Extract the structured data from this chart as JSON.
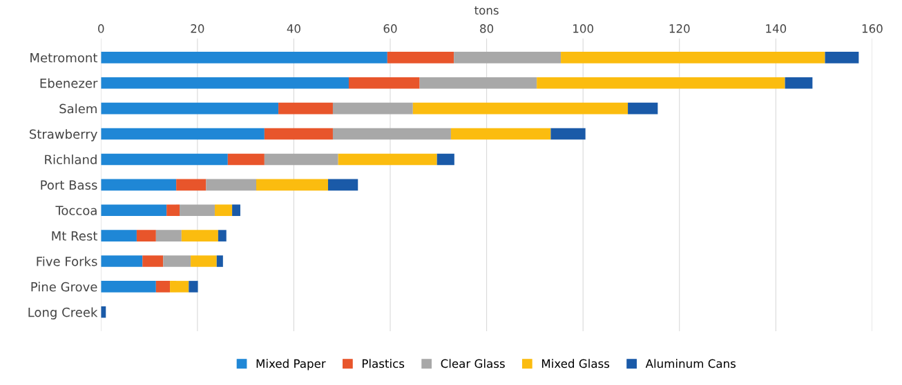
{
  "chart_data": {
    "type": "bar",
    "orientation": "horizontal",
    "stacked": true,
    "xlabel": "tons",
    "categories": [
      "Metromont",
      "Ebenezer",
      "Salem",
      "Strawberry",
      "Richland",
      "Port Bass",
      "Toccoa",
      "Mt Rest",
      "Five Forks",
      "Pine Grove",
      "Long Creek"
    ],
    "series": [
      {
        "name": "Mixed Paper",
        "color": "#1f87d6",
        "values": [
          59.4,
          51.4,
          36.8,
          33.9,
          26.3,
          15.6,
          13.6,
          7.4,
          8.6,
          11.4,
          0
        ]
      },
      {
        "name": "Plastics",
        "color": "#e8552b",
        "values": [
          13.8,
          14.7,
          11.3,
          14.2,
          7.6,
          6.2,
          2.7,
          4.0,
          4.3,
          2.9,
          0
        ]
      },
      {
        "name": "Clear Glass",
        "color": "#a8a8a8",
        "values": [
          22.2,
          24.3,
          16.6,
          24.5,
          15.3,
          10.4,
          7.3,
          5.3,
          5.7,
          0,
          0
        ]
      },
      {
        "name": "Mixed Glass",
        "color": "#fbbc0f",
        "values": [
          54.8,
          51.5,
          44.6,
          20.7,
          20.5,
          14.9,
          3.6,
          7.6,
          5.4,
          3.9,
          0
        ]
      },
      {
        "name": "Aluminum Cans",
        "color": "#1a5aa8",
        "values": [
          7.0,
          5.7,
          6.2,
          7.2,
          3.6,
          6.2,
          1.7,
          1.7,
          1.3,
          1.9,
          1.0
        ]
      }
    ],
    "xlim": [
      0,
      160
    ],
    "xticks": [
      0,
      20,
      40,
      60,
      80,
      100,
      120,
      140,
      160
    ],
    "grid": "x",
    "legend": "bottom"
  }
}
